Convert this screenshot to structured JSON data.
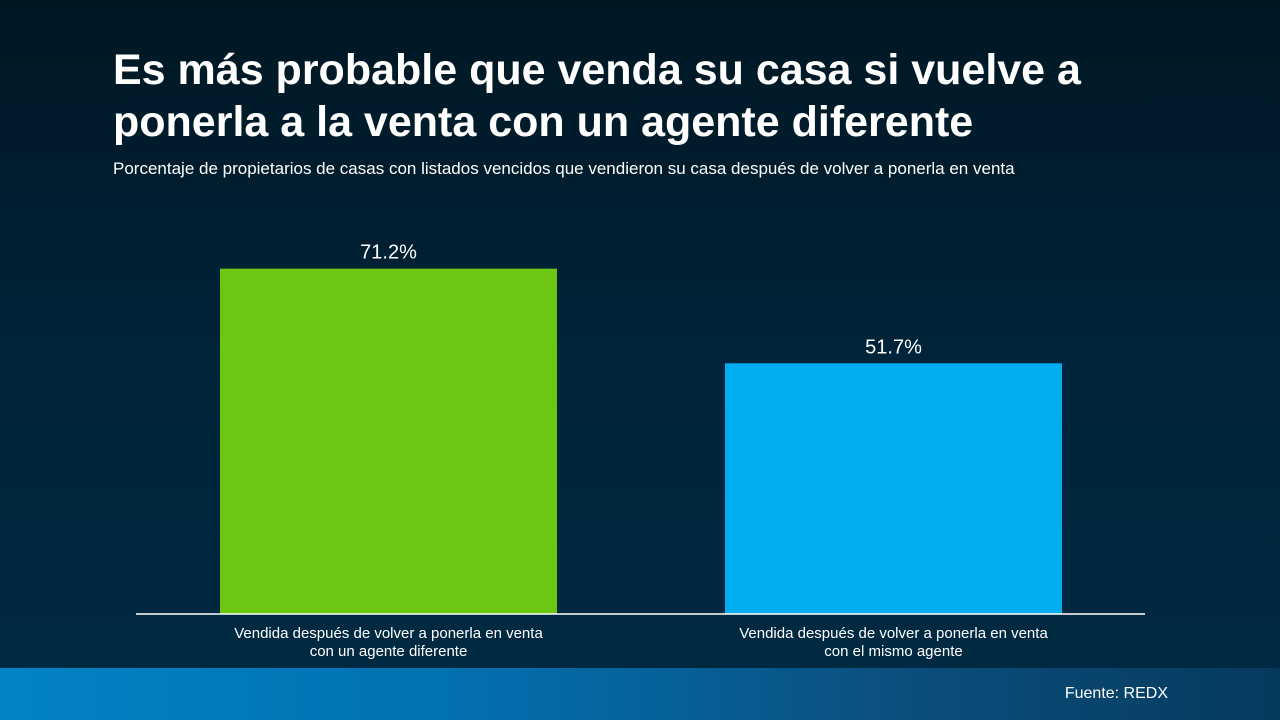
{
  "slide": {
    "title": "Es más probable que venda su casa si vuelve a ponerla a la venta con un agente diferente",
    "subtitle": "Porcentaje de propietarios de casas con listados vencidos que vendieron su casa después de volver a ponerla en venta",
    "source": "Fuente: REDX"
  },
  "chart_data": {
    "type": "bar",
    "categories": [
      [
        "Vendida después de volver a ponerla en venta",
        "con un agente diferente"
      ],
      [
        "Vendida después de volver a ponerla en venta",
        "con el mismo agente"
      ]
    ],
    "values": [
      71.2,
      51.7
    ],
    "value_labels": [
      "71.2%",
      "51.7%"
    ],
    "colors": [
      "#6cc712",
      "#00adef"
    ],
    "ylim": [
      0,
      100
    ],
    "grid": false,
    "legend": "none"
  }
}
